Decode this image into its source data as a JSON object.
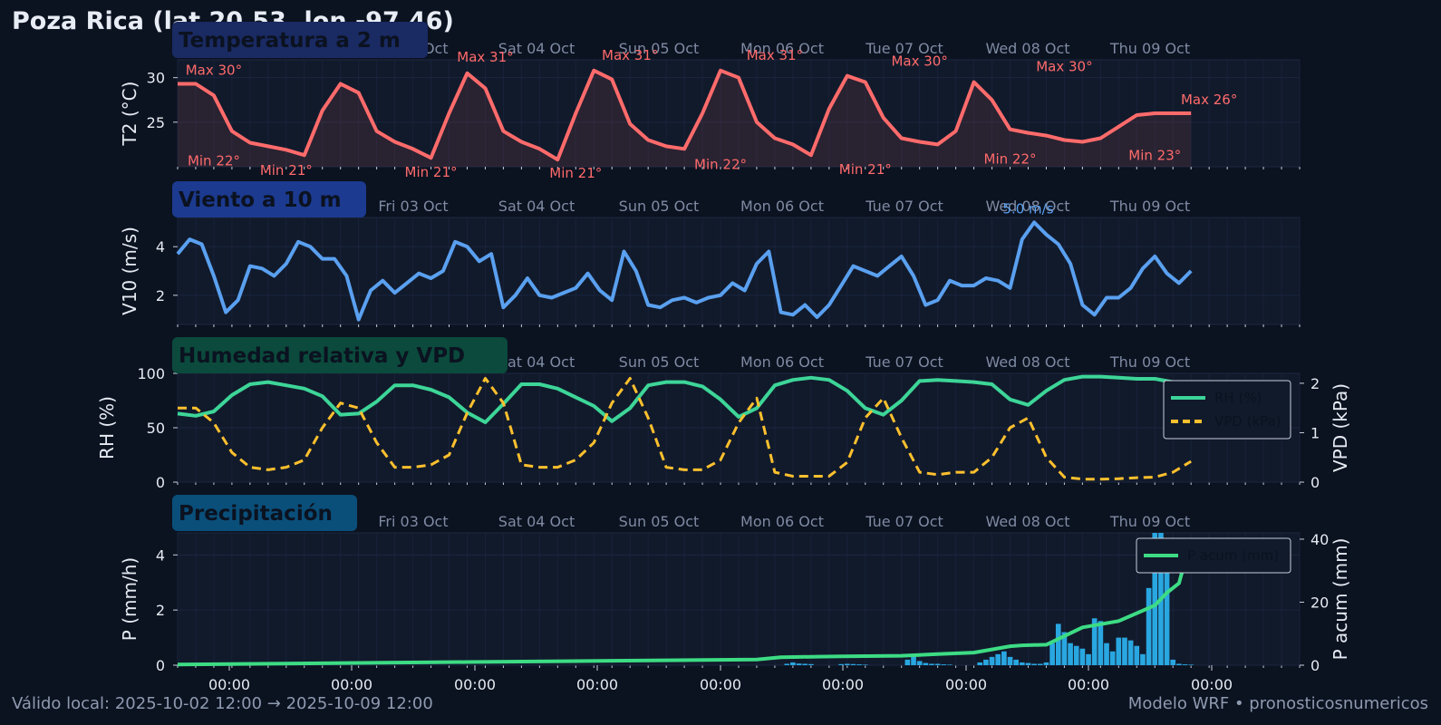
{
  "title": "Poza Rica (lat 20.53, lon -97.46)",
  "footer": {
    "valid": "Válido local: 2025-10-02 12:00 → 2025-10-09 12:00",
    "model": "Modelo WRF • pronosticosnumericos"
  },
  "colors": {
    "background": "#0b1220",
    "panel": "#111a2b",
    "temperature": "#ff6b6b",
    "wind": "#5aa0f0",
    "rh": "#3dd598",
    "vpd": "#ffc02e",
    "precip_bars": "#29a7e1",
    "precip_accum": "#3ddc84",
    "day_labels": "#7f8ba3"
  },
  "chart_data": [
    {
      "type": "line",
      "panel_title": "Temperatura a 2 m",
      "ylabel": "T2 (°C)",
      "ylim": [
        20,
        32
      ],
      "yticks": [
        25,
        30
      ],
      "xlim": [
        0,
        186
      ],
      "day_labels": [
        "Fri 03 Oct",
        "Sat 04 Oct",
        "Sun 05 Oct",
        "Mon 06 Oct",
        "Tue 07 Oct",
        "Wed 08 Oct",
        "Thu 09 Oct"
      ],
      "series": [
        {
          "x": [
            0,
            3,
            6,
            9,
            12,
            15,
            18,
            21,
            24,
            27,
            30,
            33,
            36,
            39,
            42,
            45,
            48,
            51,
            54,
            57,
            60,
            63,
            66,
            69,
            72,
            75,
            78,
            81,
            84,
            87,
            90,
            93,
            96,
            99,
            102,
            105,
            108,
            111,
            114,
            117,
            120,
            123,
            126,
            129,
            132,
            135,
            138,
            141,
            144,
            147,
            150,
            153,
            156,
            159,
            162,
            165,
            168
          ],
          "values": [
            29.3,
            29.3,
            28.0,
            24.0,
            22.7,
            22.3,
            21.9,
            21.3,
            26.3,
            29.3,
            28.3,
            24.0,
            22.8,
            22.0,
            21.0,
            26.0,
            30.5,
            28.8,
            24.0,
            22.8,
            22.0,
            20.8,
            26.0,
            30.8,
            29.8,
            24.8,
            23.0,
            22.3,
            22.0,
            26.0,
            30.8,
            30.0,
            25.0,
            23.2,
            22.5,
            21.3,
            26.5,
            30.2,
            29.5,
            25.5,
            23.2,
            22.8,
            22.5,
            24.0,
            29.5,
            27.5,
            24.2,
            23.8,
            23.5,
            23.0,
            22.8,
            23.2,
            24.5,
            25.8,
            26.0,
            26.0,
            26.0
          ]
        }
      ],
      "annotations": [
        {
          "text": "Max 30°",
          "x": 6,
          "y": 29.3,
          "pos": "above"
        },
        {
          "text": "Min 22°",
          "x": 6,
          "y": 22.2,
          "pos": "below"
        },
        {
          "text": "Min 21°",
          "x": 18,
          "y": 21.1,
          "pos": "below"
        },
        {
          "text": "Max 31°",
          "x": 51,
          "y": 30.8,
          "pos": "above"
        },
        {
          "text": "Min 21°",
          "x": 42,
          "y": 20.9,
          "pos": "below"
        },
        {
          "text": "Max 31°",
          "x": 75,
          "y": 31.0,
          "pos": "above"
        },
        {
          "text": "Min 21°",
          "x": 66,
          "y": 20.8,
          "pos": "below"
        },
        {
          "text": "Max 31°",
          "x": 99,
          "y": 31.0,
          "pos": "above"
        },
        {
          "text": "Min 22°",
          "x": 90,
          "y": 21.8,
          "pos": "below"
        },
        {
          "text": "Max 30°",
          "x": 123,
          "y": 30.3,
          "pos": "above"
        },
        {
          "text": "Min 21°",
          "x": 114,
          "y": 21.2,
          "pos": "below"
        },
        {
          "text": "Max 30°",
          "x": 147,
          "y": 29.7,
          "pos": "above"
        },
        {
          "text": "Min 22°",
          "x": 138,
          "y": 22.4,
          "pos": "below"
        },
        {
          "text": "Max 26°",
          "x": 171,
          "y": 26.0,
          "pos": "above"
        },
        {
          "text": "Min 23°",
          "x": 162,
          "y": 22.8,
          "pos": "below"
        }
      ]
    },
    {
      "type": "line",
      "panel_title": "Viento a 10 m",
      "ylabel": "V10 (m/s)",
      "ylim": [
        0.8,
        5.2
      ],
      "yticks": [
        2,
        4
      ],
      "xlim": [
        0,
        186
      ],
      "day_labels": [
        "Fri 03 Oct",
        "Sat 04 Oct",
        "Sun 05 Oct",
        "Mon 06 Oct",
        "Tue 07 Oct",
        "Wed 08 Oct",
        "Thu 09 Oct"
      ],
      "series": [
        {
          "x": [
            0,
            2,
            4,
            6,
            8,
            10,
            12,
            14,
            16,
            18,
            20,
            22,
            24,
            26,
            28,
            30,
            32,
            34,
            36,
            38,
            40,
            42,
            44,
            46,
            48,
            50,
            52,
            54,
            56,
            58,
            60,
            62,
            64,
            66,
            68,
            70,
            72,
            74,
            76,
            78,
            80,
            82,
            84,
            86,
            88,
            90,
            92,
            94,
            96,
            98,
            100,
            102,
            104,
            106,
            108,
            110,
            112,
            114,
            116,
            118,
            120,
            122,
            124,
            126,
            128,
            130,
            132,
            134,
            136,
            138,
            140,
            142,
            144,
            146,
            148,
            150,
            152,
            154,
            156,
            158,
            160,
            162,
            164,
            166,
            168
          ],
          "values": [
            3.7,
            4.3,
            4.1,
            2.8,
            1.3,
            1.8,
            3.2,
            3.1,
            2.8,
            3.3,
            4.2,
            4.0,
            3.5,
            3.5,
            2.8,
            1.0,
            2.2,
            2.6,
            2.1,
            2.5,
            2.9,
            2.7,
            3.0,
            4.2,
            4.0,
            3.4,
            3.7,
            1.5,
            2.0,
            2.7,
            2.0,
            1.9,
            2.1,
            2.3,
            2.9,
            2.2,
            1.8,
            3.8,
            3.0,
            1.6,
            1.5,
            1.8,
            1.9,
            1.7,
            1.9,
            2.0,
            2.5,
            2.2,
            3.3,
            3.8,
            1.3,
            1.2,
            1.6,
            1.1,
            1.6,
            2.4,
            3.2,
            3.0,
            2.8,
            3.2,
            3.6,
            2.8,
            1.6,
            1.8,
            2.6,
            2.4,
            2.4,
            2.7,
            2.6,
            2.3,
            4.3,
            5.0,
            4.5,
            4.1,
            3.3,
            1.6,
            1.2,
            1.9,
            1.9,
            2.3,
            3.1,
            3.6,
            2.9,
            2.5,
            3.0
          ],
          "name": ""
        }
      ],
      "annotations": [
        {
          "text": "5.0 m/s",
          "x": 141,
          "y": 5.0,
          "pos": "above"
        }
      ]
    },
    {
      "type": "line",
      "panel_title": "Humedad relativa y VPD",
      "ylabel": "RH (%)",
      "ylabel_right": "VPD (kPa)",
      "ylim": [
        0,
        100
      ],
      "ylim_right": [
        0,
        2.2
      ],
      "yticks": [
        0,
        50,
        100
      ],
      "yticks_right": [
        0,
        1,
        2
      ],
      "xlim": [
        0,
        186
      ],
      "day_labels": [
        "Fri 03 Oct",
        "Sat 04 Oct",
        "Sun 05 Oct",
        "Mon 06 Oct",
        "Tue 07 Oct",
        "Wed 08 Oct",
        "Thu 09 Oct"
      ],
      "legend": "right",
      "series": [
        {
          "name": "RH (%)",
          "axis": "left",
          "style": "solid",
          "x": [
            0,
            3,
            6,
            9,
            12,
            15,
            18,
            21,
            24,
            27,
            30,
            33,
            36,
            39,
            42,
            45,
            48,
            51,
            54,
            57,
            60,
            63,
            66,
            69,
            72,
            75,
            78,
            81,
            84,
            87,
            90,
            93,
            96,
            99,
            102,
            105,
            108,
            111,
            114,
            117,
            120,
            123,
            126,
            129,
            132,
            135,
            138,
            141,
            144,
            147,
            150,
            153,
            156,
            159,
            162,
            165,
            168
          ],
          "values": [
            63,
            61,
            65,
            80,
            90,
            92,
            89,
            86,
            79,
            62,
            63,
            74,
            89,
            89,
            85,
            78,
            64,
            55,
            72,
            90,
            90,
            86,
            78,
            70,
            56,
            68,
            89,
            92,
            92,
            88,
            76,
            60,
            68,
            89,
            94,
            96,
            94,
            84,
            68,
            62,
            75,
            93,
            94,
            93,
            92,
            90,
            76,
            71,
            84,
            94,
            97,
            97,
            96,
            95,
            95,
            92,
            87
          ]
        },
        {
          "name": "VPD (kPa)",
          "axis": "right",
          "style": "dashed",
          "x": [
            0,
            3,
            6,
            9,
            12,
            15,
            18,
            21,
            24,
            27,
            30,
            33,
            36,
            39,
            42,
            45,
            48,
            51,
            54,
            57,
            60,
            63,
            66,
            69,
            72,
            75,
            78,
            81,
            84,
            87,
            90,
            93,
            96,
            99,
            102,
            105,
            108,
            111,
            114,
            117,
            120,
            123,
            126,
            129,
            132,
            135,
            138,
            141,
            144,
            147,
            150,
            153,
            156,
            159,
            162,
            165,
            168
          ],
          "values": [
            1.5,
            1.5,
            1.2,
            0.6,
            0.3,
            0.25,
            0.3,
            0.45,
            1.1,
            1.6,
            1.5,
            0.8,
            0.3,
            0.3,
            0.35,
            0.55,
            1.4,
            2.1,
            1.6,
            0.35,
            0.3,
            0.3,
            0.45,
            0.8,
            1.6,
            2.1,
            1.3,
            0.3,
            0.25,
            0.25,
            0.45,
            1.2,
            1.7,
            0.2,
            0.12,
            0.12,
            0.12,
            0.4,
            1.3,
            1.7,
            0.9,
            0.2,
            0.15,
            0.2,
            0.2,
            0.5,
            1.1,
            1.3,
            0.5,
            0.1,
            0.06,
            0.06,
            0.07,
            0.09,
            0.1,
            0.2,
            0.42
          ]
        }
      ]
    },
    {
      "type": "bar",
      "panel_title": "Precipitación",
      "ylabel": "P (mm/h)",
      "ylabel_right": "P acum (mm)",
      "ylim": [
        0,
        4.8
      ],
      "ylim_right": [
        0,
        42
      ],
      "yticks": [
        0,
        2,
        4
      ],
      "yticks_right": [
        0,
        20,
        40
      ],
      "xlim": [
        0,
        186
      ],
      "xtick_labels": [
        "00:00",
        "00:00",
        "00:00",
        "00:00",
        "00:00",
        "00:00",
        "00:00",
        "00:00",
        "00:00"
      ],
      "day_labels": [
        "Fri 03 Oct",
        "Sat 04 Oct",
        "Sun 05 Oct",
        "Mon 06 Oct",
        "Tue 07 Oct",
        "Wed 08 Oct",
        "Thu 09 Oct"
      ],
      "legend": "top-right",
      "series": [
        {
          "name": "",
          "axis": "left",
          "x": [
            101,
            102,
            103,
            104,
            105,
            110,
            111,
            112,
            113,
            114,
            121,
            122,
            123,
            124,
            125,
            126,
            127,
            128,
            133,
            134,
            135,
            136,
            137,
            138,
            139,
            140,
            141,
            142,
            143,
            144,
            145,
            146,
            147,
            148,
            149,
            150,
            151,
            152,
            153,
            154,
            155,
            156,
            157,
            158,
            159,
            160,
            161,
            162,
            163,
            164,
            165,
            166,
            167,
            168
          ],
          "values": [
            0.05,
            0.1,
            0.06,
            0.05,
            0.04,
            0.04,
            0.05,
            0.04,
            0.03,
            0.02,
            0.2,
            0.3,
            0.15,
            0.08,
            0.05,
            0.05,
            0.03,
            0.02,
            0.1,
            0.2,
            0.3,
            0.4,
            0.5,
            0.3,
            0.2,
            0.1,
            0.08,
            0.05,
            0.05,
            0.1,
            0.8,
            1.5,
            1.2,
            0.8,
            0.7,
            0.6,
            0.4,
            1.7,
            1.6,
            0.8,
            0.5,
            1.0,
            1.0,
            0.9,
            0.7,
            0.4,
            2.8,
            4.8,
            4.8,
            3.7,
            0.2,
            0.05,
            0.03,
            0.02
          ]
        },
        {
          "name": "P acum (mm)",
          "axis": "right",
          "style": "solid",
          "x": [
            0,
            24,
            48,
            72,
            96,
            100,
            106,
            110,
            120,
            126,
            132,
            138,
            140,
            144,
            150,
            156,
            162,
            164,
            166,
            168
          ],
          "values": [
            0.2,
            0.6,
            1.0,
            1.4,
            1.8,
            2.5,
            2.7,
            2.8,
            3.0,
            3.5,
            4.0,
            6.0,
            6.3,
            6.5,
            12,
            14,
            19,
            23,
            26,
            40
          ]
        }
      ]
    }
  ]
}
